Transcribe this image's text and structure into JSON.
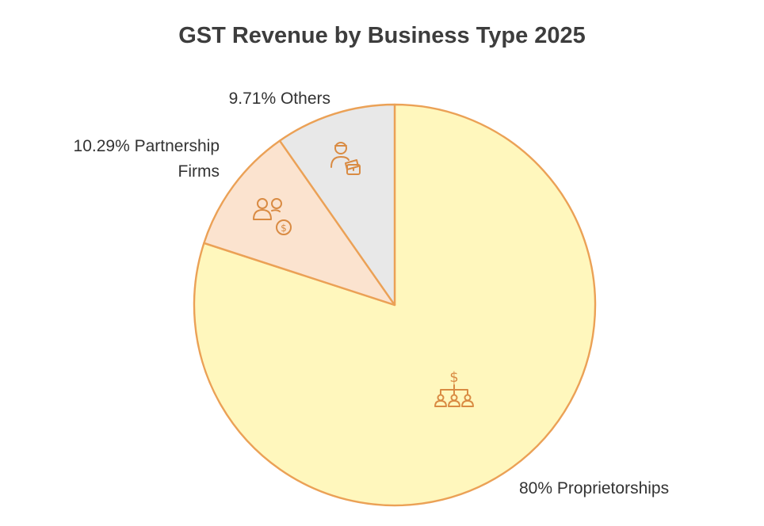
{
  "chart_data": {
    "type": "pie",
    "title": "GST Revenue by Business Type 2025",
    "slices": [
      {
        "name": "Proprietorships",
        "value": 80,
        "label": "80% Proprietorships",
        "color": "#fff7bd",
        "icon": "hierarchy-dollar-icon"
      },
      {
        "name": "Partnership Firms",
        "value": 10.29,
        "label_lines": [
          "10.29% Partnership",
          "Firms"
        ],
        "color": "#fbe3cf",
        "icon": "partners-dollar-icon"
      },
      {
        "name": "Others",
        "value": 9.71,
        "label": "9.71% Others",
        "color": "#e8e8e8",
        "icon": "person-briefcase-icon"
      }
    ],
    "start_angle": "12 o'clock",
    "direction": "clockwise",
    "stroke_color": "#eba156",
    "icon_color": "#d98b43",
    "legend": "none (labels beside slices)"
  }
}
